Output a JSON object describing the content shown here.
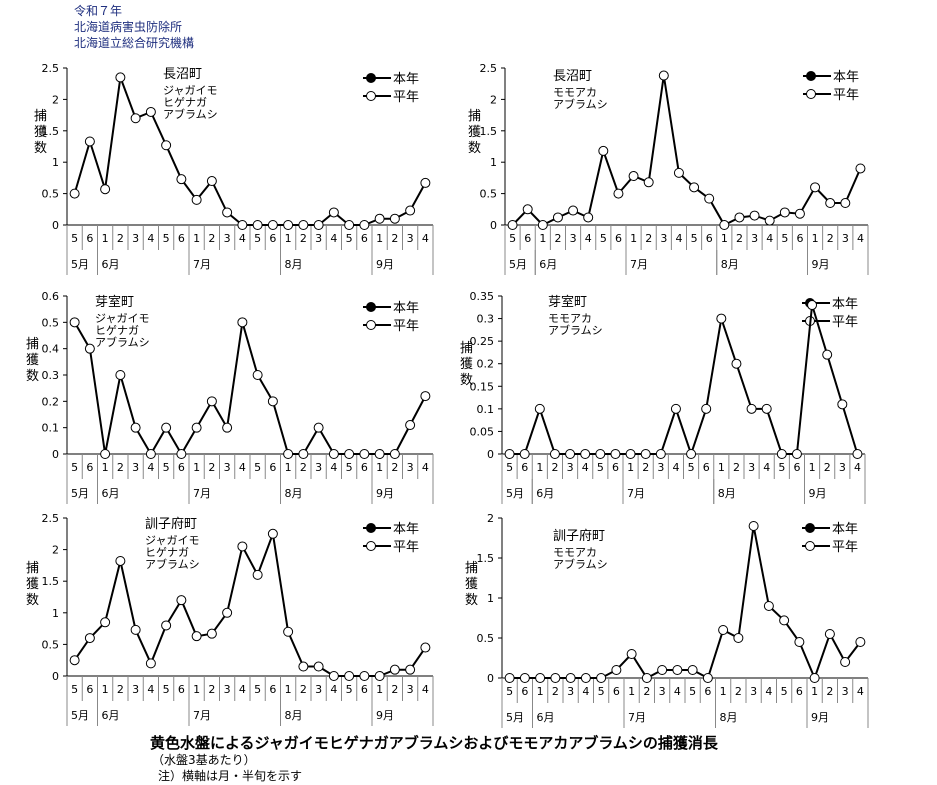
{
  "header": {
    "line1": "令和７年",
    "line2": "北海道病害虫防除所",
    "line3": "北海道立総合研究機構"
  },
  "footer": {
    "title": "黄色水盤によるジャガイモヒゲナガアブラムシおよびモモアカアブラムシの捕獲消長",
    "note1": "（水盤3基あたり）",
    "note2": "注）横軸は月・半旬を示す"
  },
  "axis": {
    "ylabel": [
      "捕",
      "獲",
      "数"
    ],
    "x_half_month_ticks": [
      "5",
      "6",
      "1",
      "2",
      "3",
      "4",
      "5",
      "6",
      "1",
      "2",
      "3",
      "4",
      "5",
      "6",
      "1",
      "2",
      "3",
      "4",
      "5",
      "6",
      "1",
      "2",
      "3",
      "4"
    ],
    "months": [
      {
        "label": "5月",
        "start": 0,
        "end": 2
      },
      {
        "label": "6月",
        "start": 2,
        "end": 8
      },
      {
        "label": "7月",
        "start": 8,
        "end": 14
      },
      {
        "label": "8月",
        "start": 14,
        "end": 20
      },
      {
        "label": "9月",
        "start": 20,
        "end": 24
      }
    ]
  },
  "legend": [
    "本年",
    "平年"
  ],
  "chart_data": [
    {
      "type": "line",
      "title_lines": [
        "長沼町",
        "ジャガイモ",
        "ヒゲナガ",
        "アブラムシ"
      ],
      "ylim": [
        0,
        2.5
      ],
      "yticks": [
        "0",
        "0.5",
        "1",
        "1.5",
        "2",
        "2.5"
      ],
      "series": [
        {
          "name": "本年",
          "values": []
        },
        {
          "name": "平年",
          "values": [
            0.5,
            1.33,
            0.57,
            2.35,
            1.7,
            1.8,
            1.27,
            0.73,
            0.4,
            0.7,
            0.2,
            0,
            0,
            0,
            0,
            0,
            0,
            0.2,
            0,
            0,
            0.1,
            0.1,
            0.23,
            0.67
          ]
        }
      ]
    },
    {
      "type": "line",
      "title_lines": [
        "長沼町",
        "モモアカ",
        "アブラムシ"
      ],
      "ylim": [
        0,
        2.5
      ],
      "yticks": [
        "0",
        "0.5",
        "1",
        "1.5",
        "2",
        "2.5"
      ],
      "series": [
        {
          "name": "本年",
          "values": []
        },
        {
          "name": "平年",
          "values": [
            0,
            0.25,
            0,
            0.12,
            0.23,
            0.12,
            1.18,
            0.5,
            0.78,
            0.68,
            2.38,
            0.83,
            0.6,
            0.42,
            0,
            0.12,
            0.15,
            0.07,
            0.2,
            0.18,
            0.6,
            0.35,
            0.35,
            0.9
          ]
        }
      ]
    },
    {
      "type": "line",
      "title_lines": [
        "芽室町",
        "ジャガイモ",
        "ヒゲナガ",
        "アブラムシ"
      ],
      "ylim": [
        0,
        0.6
      ],
      "yticks": [
        "0",
        "0.1",
        "0.2",
        "0.3",
        "0.4",
        "0.5",
        "0.6"
      ],
      "series": [
        {
          "name": "本年",
          "values": []
        },
        {
          "name": "平年",
          "values": [
            0.5,
            0.4,
            0,
            0.3,
            0.1,
            0,
            0.1,
            0,
            0.1,
            0.2,
            0.1,
            0.5,
            0.3,
            0.2,
            0,
            0,
            0.1,
            0,
            0,
            0,
            0,
            0,
            0.11,
            0.22
          ]
        }
      ]
    },
    {
      "type": "line",
      "title_lines": [
        "芽室町",
        "モモアカ",
        "アブラムシ"
      ],
      "ylim": [
        0,
        0.35
      ],
      "yticks": [
        "0",
        "0.05",
        "0.1",
        "0.15",
        "0.2",
        "0.25",
        "0.3",
        "0.35"
      ],
      "series": [
        {
          "name": "本年",
          "values": []
        },
        {
          "name": "平年",
          "values": [
            0,
            0,
            0.1,
            0,
            0,
            0,
            0,
            0,
            0,
            0,
            0,
            0.1,
            0,
            0.1,
            0.3,
            0.2,
            0.1,
            0.1,
            0,
            0,
            0.33,
            0.22,
            0.11,
            0
          ]
        }
      ]
    },
    {
      "type": "line",
      "title_lines": [
        "訓子府町",
        "ジャガイモ",
        "ヒゲナガ",
        "アブラムシ"
      ],
      "ylim": [
        0,
        2.5
      ],
      "yticks": [
        "0",
        "0.5",
        "1",
        "1.5",
        "2",
        "2.5"
      ],
      "series": [
        {
          "name": "本年",
          "values": []
        },
        {
          "name": "平年",
          "values": [
            0.25,
            0.6,
            0.85,
            1.82,
            0.73,
            0.2,
            0.8,
            1.2,
            0.63,
            0.67,
            1,
            2.05,
            1.6,
            2.25,
            0.7,
            0.15,
            0.15,
            0,
            0,
            0,
            0,
            0.1,
            0.1,
            0.45
          ]
        }
      ]
    },
    {
      "type": "line",
      "title_lines": [
        "訓子府町",
        "モモアカ",
        "アブラムシ"
      ],
      "ylim": [
        0,
        2
      ],
      "yticks": [
        "0",
        "0.5",
        "1",
        "1.5",
        "2"
      ],
      "series": [
        {
          "name": "本年",
          "values": []
        },
        {
          "name": "平年",
          "values": [
            0,
            0,
            0,
            0,
            0,
            0,
            0,
            0.1,
            0.3,
            0,
            0.1,
            0.1,
            0.1,
            0,
            0.6,
            0.5,
            1.9,
            0.9,
            0.72,
            0.45,
            0,
            0.55,
            0.2,
            0.45
          ]
        }
      ]
    }
  ]
}
